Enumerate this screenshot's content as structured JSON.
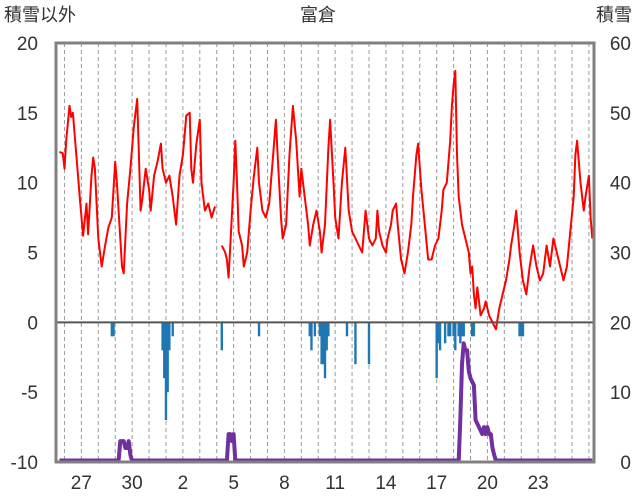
{
  "chart_data": {
    "type": "line",
    "title": "富倉",
    "left_axis_label": "積雪以外",
    "right_axis_label": "積雪",
    "y_left_range": [
      -10,
      20
    ],
    "y_left_ticks": [
      "20",
      "15",
      "10",
      "5",
      "0",
      "-5",
      "-10"
    ],
    "y_right_range": [
      0,
      60
    ],
    "y_right_ticks": [
      "60",
      "50",
      "40",
      "30",
      "20",
      "10",
      "0"
    ],
    "x_range": [
      25.5,
      57.3
    ],
    "x_ticks": [
      {
        "day": 27,
        "label": "27"
      },
      {
        "day": 30,
        "label": "30"
      },
      {
        "day": 33,
        "label": "2"
      },
      {
        "day": 36,
        "label": "5"
      },
      {
        "day": 39,
        "label": "8"
      },
      {
        "day": 42,
        "label": "11"
      },
      {
        "day": 45,
        "label": "14"
      },
      {
        "day": 48,
        "label": "17"
      },
      {
        "day": 51,
        "label": "20"
      },
      {
        "day": 54,
        "label": "23"
      }
    ],
    "grid": "vertical dashed, daily",
    "colors": {
      "temperature": "#ff0000",
      "precipitation": "#1f77b4",
      "snow_depth": "#7030a0",
      "frame": "#808080",
      "zero_line": "#555555"
    },
    "series": [
      {
        "key": "temperature",
        "axis": "left",
        "segments": [
          [
            [
              25.7,
              12.2
            ],
            [
              25.9,
              12.1
            ],
            [
              26.0,
              11.0
            ],
            [
              26.1,
              13.0
            ],
            [
              26.3,
              15.5
            ],
            [
              26.4,
              14.7
            ],
            [
              26.5,
              15.0
            ],
            [
              26.7,
              12.0
            ],
            [
              26.9,
              9.0
            ],
            [
              27.1,
              6.2
            ],
            [
              27.3,
              8.5
            ],
            [
              27.4,
              6.3
            ],
            [
              27.6,
              10.5
            ],
            [
              27.7,
              11.8
            ],
            [
              27.8,
              11.0
            ],
            [
              28.0,
              6.0
            ],
            [
              28.2,
              4.0
            ],
            [
              28.4,
              5.5
            ],
            [
              28.6,
              6.8
            ],
            [
              28.8,
              7.5
            ],
            [
              29.0,
              11.5
            ],
            [
              29.1,
              10.0
            ],
            [
              29.3,
              6.0
            ],
            [
              29.4,
              4.0
            ],
            [
              29.5,
              3.5
            ],
            [
              29.7,
              8.5
            ],
            [
              29.9,
              11.0
            ],
            [
              30.1,
              14.0
            ],
            [
              30.3,
              16.0
            ],
            [
              30.4,
              12.0
            ],
            [
              30.5,
              8.0
            ],
            [
              30.6,
              8.8
            ],
            [
              30.8,
              11.0
            ],
            [
              31.0,
              9.5
            ],
            [
              31.1,
              8.0
            ],
            [
              31.3,
              10.5
            ],
            [
              31.5,
              11.5
            ],
            [
              31.7,
              12.8
            ],
            [
              31.8,
              11.0
            ],
            [
              32.0,
              10.0
            ],
            [
              32.2,
              10.5
            ],
            [
              32.4,
              9.0
            ],
            [
              32.6,
              7.0
            ],
            [
              32.8,
              10.5
            ],
            [
              33.0,
              12.0
            ],
            [
              33.2,
              14.8
            ],
            [
              33.4,
              15.0
            ],
            [
              33.5,
              11.0
            ],
            [
              33.6,
              10.0
            ],
            [
              33.8,
              12.8
            ],
            [
              34.0,
              14.5
            ],
            [
              34.1,
              10.0
            ],
            [
              34.3,
              8.0
            ],
            [
              34.5,
              8.5
            ],
            [
              34.7,
              7.5
            ],
            [
              34.9,
              8.3
            ]
          ],
          [
            [
              35.3,
              5.5
            ],
            [
              35.5,
              5.0
            ],
            [
              35.6,
              4.5
            ],
            [
              35.7,
              3.2
            ],
            [
              35.8,
              5.5
            ],
            [
              36.0,
              10.0
            ],
            [
              36.1,
              13.0
            ],
            [
              36.2,
              10.0
            ],
            [
              36.3,
              6.5
            ],
            [
              36.5,
              5.5
            ],
            [
              36.6,
              4.0
            ],
            [
              36.8,
              5.0
            ],
            [
              37.0,
              8.0
            ],
            [
              37.2,
              10.5
            ],
            [
              37.4,
              12.5
            ],
            [
              37.5,
              10.0
            ],
            [
              37.7,
              8.0
            ],
            [
              37.9,
              7.5
            ],
            [
              38.1,
              8.5
            ],
            [
              38.3,
              11.5
            ],
            [
              38.5,
              14.5
            ],
            [
              38.6,
              12.0
            ],
            [
              38.8,
              7.5
            ],
            [
              38.9,
              6.0
            ],
            [
              39.1,
              7.0
            ],
            [
              39.3,
              12.0
            ],
            [
              39.5,
              15.5
            ],
            [
              39.7,
              13.0
            ],
            [
              39.9,
              9.0
            ],
            [
              40.0,
              11.0
            ],
            [
              40.2,
              9.0
            ],
            [
              40.4,
              7.0
            ],
            [
              40.5,
              5.5
            ],
            [
              40.7,
              7.0
            ],
            [
              40.9,
              8.0
            ],
            [
              41.1,
              6.5
            ],
            [
              41.2,
              5.0
            ],
            [
              41.4,
              7.0
            ],
            [
              41.6,
              12.5
            ],
            [
              41.7,
              14.5
            ],
            [
              41.9,
              10.0
            ],
            [
              42.0,
              7.5
            ],
            [
              42.2,
              6.0
            ],
            [
              42.4,
              10.0
            ],
            [
              42.6,
              12.5
            ],
            [
              42.8,
              8.0
            ],
            [
              43.0,
              6.5
            ],
            [
              43.2,
              6.0
            ],
            [
              43.4,
              5.5
            ],
            [
              43.6,
              5.0
            ],
            [
              43.8,
              8.0
            ],
            [
              44.0,
              6.0
            ],
            [
              44.2,
              5.5
            ],
            [
              44.4,
              6.0
            ],
            [
              44.5,
              8.0
            ],
            [
              44.6,
              6.5
            ],
            [
              44.8,
              5.5
            ],
            [
              45.0,
              5.0
            ],
            [
              45.1,
              6.0
            ],
            [
              45.3,
              7.0
            ],
            [
              45.4,
              8.0
            ],
            [
              45.6,
              8.5
            ],
            [
              45.7,
              7.0
            ],
            [
              45.9,
              4.5
            ],
            [
              46.1,
              3.5
            ],
            [
              46.3,
              5.0
            ],
            [
              46.5,
              7.0
            ],
            [
              46.6,
              9.0
            ],
            [
              46.8,
              12.0
            ],
            [
              46.9,
              12.8
            ],
            [
              47.1,
              9.5
            ],
            [
              47.3,
              7.0
            ],
            [
              47.5,
              4.5
            ],
            [
              47.7,
              4.5
            ],
            [
              47.9,
              5.5
            ],
            [
              48.1,
              6.0
            ],
            [
              48.3,
              8.0
            ],
            [
              48.4,
              9.5
            ],
            [
              48.6,
              10.0
            ],
            [
              48.8,
              13.0
            ],
            [
              48.9,
              15.5
            ],
            [
              49.0,
              17.0
            ],
            [
              49.1,
              18.0
            ],
            [
              49.2,
              12.0
            ],
            [
              49.3,
              9.0
            ],
            [
              49.5,
              7.0
            ],
            [
              49.7,
              6.0
            ],
            [
              49.9,
              5.0
            ],
            [
              50.0,
              3.5
            ],
            [
              50.1,
              4.0
            ],
            [
              50.2,
              2.0
            ],
            [
              50.3,
              1.0
            ],
            [
              50.4,
              2.5
            ],
            [
              50.5,
              1.5
            ],
            [
              50.6,
              0.5
            ],
            [
              50.8,
              1.0
            ],
            [
              50.9,
              1.5
            ],
            [
              51.1,
              0.5
            ],
            [
              51.3,
              0.0
            ],
            [
              51.5,
              -0.5
            ],
            [
              51.7,
              1.0
            ],
            [
              51.9,
              2.0
            ],
            [
              52.1,
              3.0
            ],
            [
              52.3,
              4.5
            ],
            [
              52.4,
              5.5
            ],
            [
              52.6,
              7.0
            ],
            [
              52.7,
              8.0
            ],
            [
              52.9,
              5.0
            ],
            [
              53.1,
              3.0
            ],
            [
              53.3,
              2.0
            ],
            [
              53.5,
              4.0
            ],
            [
              53.7,
              5.5
            ],
            [
              53.9,
              4.0
            ],
            [
              54.1,
              3.0
            ],
            [
              54.3,
              3.5
            ],
            [
              54.5,
              5.5
            ],
            [
              54.7,
              4.0
            ],
            [
              54.9,
              6.0
            ],
            [
              55.1,
              5.0
            ],
            [
              55.3,
              4.0
            ],
            [
              55.5,
              3.0
            ],
            [
              55.7,
              4.0
            ],
            [
              55.9,
              6.5
            ],
            [
              56.1,
              9.0
            ],
            [
              56.2,
              12.0
            ],
            [
              56.3,
              13.0
            ],
            [
              56.5,
              10.0
            ],
            [
              56.7,
              8.0
            ],
            [
              56.8,
              9.0
            ],
            [
              57.0,
              10.5
            ],
            [
              57.1,
              7.5
            ],
            [
              57.2,
              6.0
            ]
          ]
        ]
      },
      {
        "key": "precipitation",
        "axis": "left",
        "bars": [
          [
            28.8,
            -1.0
          ],
          [
            28.9,
            -1.0
          ],
          [
            31.8,
            -2.0
          ],
          [
            31.9,
            -4.0
          ],
          [
            32.0,
            -7.0
          ],
          [
            32.1,
            -5.0
          ],
          [
            32.2,
            -2.0
          ],
          [
            32.4,
            -1.0
          ],
          [
            35.3,
            -2.0
          ],
          [
            37.5,
            -1.0
          ],
          [
            40.5,
            -1.0
          ],
          [
            40.6,
            -2.0
          ],
          [
            40.8,
            -1.0
          ],
          [
            41.1,
            -1.0
          ],
          [
            41.2,
            -3.0
          ],
          [
            41.3,
            -3.0
          ],
          [
            41.4,
            -4.0
          ],
          [
            41.5,
            -2.0
          ],
          [
            41.6,
            -1.0
          ],
          [
            42.7,
            -1.0
          ],
          [
            43.2,
            -3.0
          ],
          [
            44.0,
            -3.0
          ],
          [
            48.0,
            -4.0
          ],
          [
            48.1,
            -1.5
          ],
          [
            48.2,
            -2.0
          ],
          [
            48.5,
            -1.5
          ],
          [
            48.7,
            -1.0
          ],
          [
            48.8,
            -1.0
          ],
          [
            49.0,
            -1.0
          ],
          [
            49.1,
            -2.0
          ],
          [
            49.3,
            -1.0
          ],
          [
            49.4,
            -1.5
          ],
          [
            49.5,
            -1.0
          ],
          [
            49.6,
            -1.0
          ],
          [
            50.1,
            -1.0
          ],
          [
            50.2,
            -1.0
          ],
          [
            52.9,
            -1.0
          ],
          [
            53.0,
            -1.0
          ],
          [
            53.1,
            -1.0
          ]
        ]
      },
      {
        "key": "snow_depth",
        "axis": "right",
        "points": [
          [
            25.7,
            0
          ],
          [
            29.2,
            0
          ],
          [
            29.3,
            3
          ],
          [
            29.5,
            3
          ],
          [
            29.6,
            2
          ],
          [
            29.7,
            2
          ],
          [
            29.8,
            3
          ],
          [
            29.9,
            1
          ],
          [
            30.0,
            0
          ],
          [
            35.6,
            0
          ],
          [
            35.7,
            4
          ],
          [
            35.8,
            4
          ],
          [
            35.9,
            3
          ],
          [
            36.0,
            4
          ],
          [
            36.1,
            0
          ],
          [
            49.3,
            0
          ],
          [
            49.4,
            6
          ],
          [
            49.5,
            14
          ],
          [
            49.6,
            17
          ],
          [
            49.7,
            16
          ],
          [
            49.8,
            16
          ],
          [
            49.9,
            13
          ],
          [
            50.0,
            12
          ],
          [
            50.2,
            11
          ],
          [
            50.3,
            6
          ],
          [
            50.5,
            5
          ],
          [
            50.7,
            4
          ],
          [
            50.8,
            5
          ],
          [
            50.9,
            4
          ],
          [
            51.0,
            5
          ],
          [
            51.1,
            4
          ],
          [
            51.2,
            4
          ],
          [
            51.3,
            2
          ],
          [
            51.4,
            1
          ],
          [
            51.5,
            0
          ],
          [
            57.2,
            0
          ]
        ]
      }
    ]
  }
}
